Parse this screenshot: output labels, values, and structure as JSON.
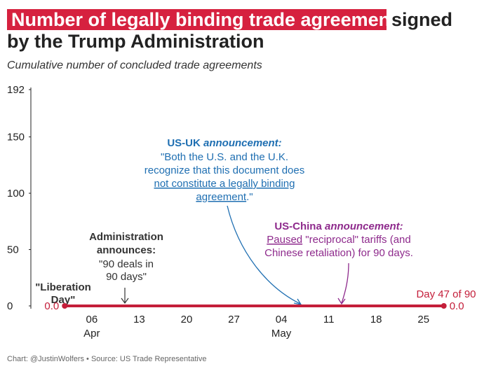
{
  "chart_data": {
    "type": "line",
    "title_highlight": "Number of legally binding trade agreements",
    "title": [
      "signed",
      "by the Trump Administration"
    ],
    "subtitle": "Cumulative number of concluded trade agreements",
    "source": "Chart: @JustinWolfers • Source: US Trade Representative",
    "x": [
      "04-02",
      "05-28"
    ],
    "series": [
      {
        "color": "#c41e3a",
        "values": [
          0,
          0
        ],
        "value_labels": [
          "0.0",
          "0.0"
        ]
      }
    ],
    "xlim": [
      "03-28",
      "05-30"
    ],
    "xticks": [
      {
        "value": "04-06",
        "label": "06",
        "month": "Apr"
      },
      {
        "value": "04-13",
        "label": "13"
      },
      {
        "value": "04-20",
        "label": "20"
      },
      {
        "value": "04-27",
        "label": "27"
      },
      {
        "value": "05-04",
        "label": "04",
        "month": "May"
      },
      {
        "value": "05-11",
        "label": "11"
      },
      {
        "value": "05-18",
        "label": "18"
      },
      {
        "value": "05-25",
        "label": "25"
      }
    ],
    "ylim": [
      0,
      192
    ],
    "yticks": [
      0,
      50,
      100,
      150,
      192
    ],
    "grid": false,
    "annotations": {
      "liberation_day": [
        "\"Liberation",
        "Day\""
      ],
      "administration": {
        "heading": [
          "Administration",
          "announces:"
        ],
        "quote": [
          "\"90 deals in",
          "90 days\""
        ]
      },
      "us_uk": {
        "head_bold": "US-UK",
        "head_italic": "announcement:",
        "lines": [
          "\"Both the U.S. and the U.K.",
          "recognize that this document does"
        ],
        "underlined": [
          "not constitute a legally binding",
          "agreement"
        ],
        "end": ".\""
      },
      "us_china": {
        "head_bold": "US-China",
        "head_italic": "announcement:",
        "underlined": "Paused",
        "line1_rest": "\"reciprocal\" tariffs (and",
        "line2": "Chinese retaliation) for 90 days."
      },
      "day_count": "Day 47 of 90"
    }
  }
}
